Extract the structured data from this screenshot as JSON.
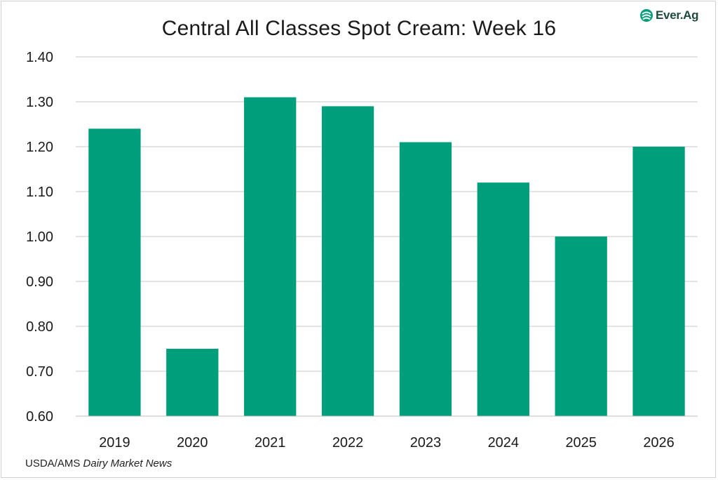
{
  "brand": {
    "logo_text": "Ever.Ag",
    "logo_icon": "ever-ag-leaf-icon",
    "accent_color": "#009E7A"
  },
  "footer": {
    "source_prefix": "USDA/AMS ",
    "source_italic": "Dairy Market News"
  },
  "chart_data": {
    "type": "bar",
    "title": "Central All Classes Spot Cream: Week 16",
    "xlabel": "",
    "ylabel": "",
    "categories": [
      "2019",
      "2020",
      "2021",
      "2022",
      "2023",
      "2024",
      "2025",
      "2026"
    ],
    "values": [
      1.24,
      0.75,
      1.31,
      1.29,
      1.21,
      1.12,
      1.0,
      1.2
    ],
    "ylim": [
      0.6,
      1.4
    ],
    "yticks": [
      "0.60",
      "0.70",
      "0.80",
      "0.90",
      "1.00",
      "1.10",
      "1.20",
      "1.30",
      "1.40"
    ],
    "grid": true,
    "legend": "none",
    "bar_color": "#009E7A",
    "grid_color": "#c8c8c8"
  }
}
